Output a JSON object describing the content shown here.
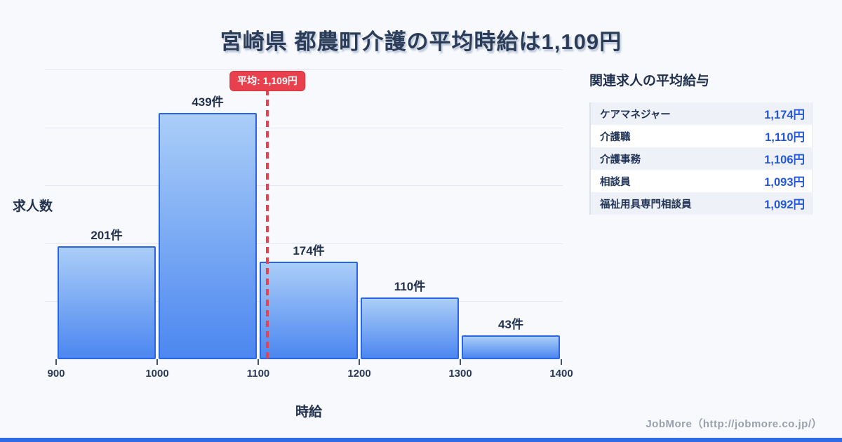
{
  "title": "宮崎県 都農町介護の平均時給は1,109円",
  "chart_data": {
    "type": "bar",
    "title": "宮崎県 都農町介護の平均時給は1,109円",
    "xlabel": "時給",
    "ylabel": "求人数",
    "bin_edges": [
      900,
      1000,
      1100,
      1200,
      1300,
      1400
    ],
    "values": [
      201,
      439,
      174,
      110,
      43
    ],
    "bar_labels": [
      "201件",
      "439件",
      "174件",
      "110件",
      "43件"
    ],
    "x_tick_labels": [
      "900",
      "1000",
      "1100",
      "1200",
      "1300",
      "1400"
    ],
    "x_range": [
      900,
      1400
    ],
    "y_range": [
      0,
      516
    ],
    "grid": true,
    "legend": "none",
    "average_line": {
      "value": 1109,
      "label": "平均: 1,109円"
    }
  },
  "related_jobs_panel": {
    "heading": "関連求人の平均給与",
    "rows": [
      {
        "label": "ケアマネジャー",
        "value": "1,174円"
      },
      {
        "label": "介護職",
        "value": "1,110円"
      },
      {
        "label": "介護事務",
        "value": "1,106円"
      },
      {
        "label": "相談員",
        "value": "1,093円"
      },
      {
        "label": "福祉用具専門相談員",
        "value": "1,092円"
      }
    ]
  },
  "footer": {
    "credit": "JobMore（http://jobmore.co.jp/）"
  },
  "colors": {
    "background": "#f7f9fc",
    "bar_fill_top": "#abcef8",
    "bar_fill_bottom": "#4c87f0",
    "bar_border": "#2a65e2",
    "average_red": "#e8414d",
    "heading_navy": "#2b3c59",
    "value_blue": "#2356d8",
    "gridline": "#e3e6f0",
    "zebra_row": "#eef1f8",
    "footer_gray": "#9aa1ad",
    "accent_bottom": "#2d6ce5"
  }
}
